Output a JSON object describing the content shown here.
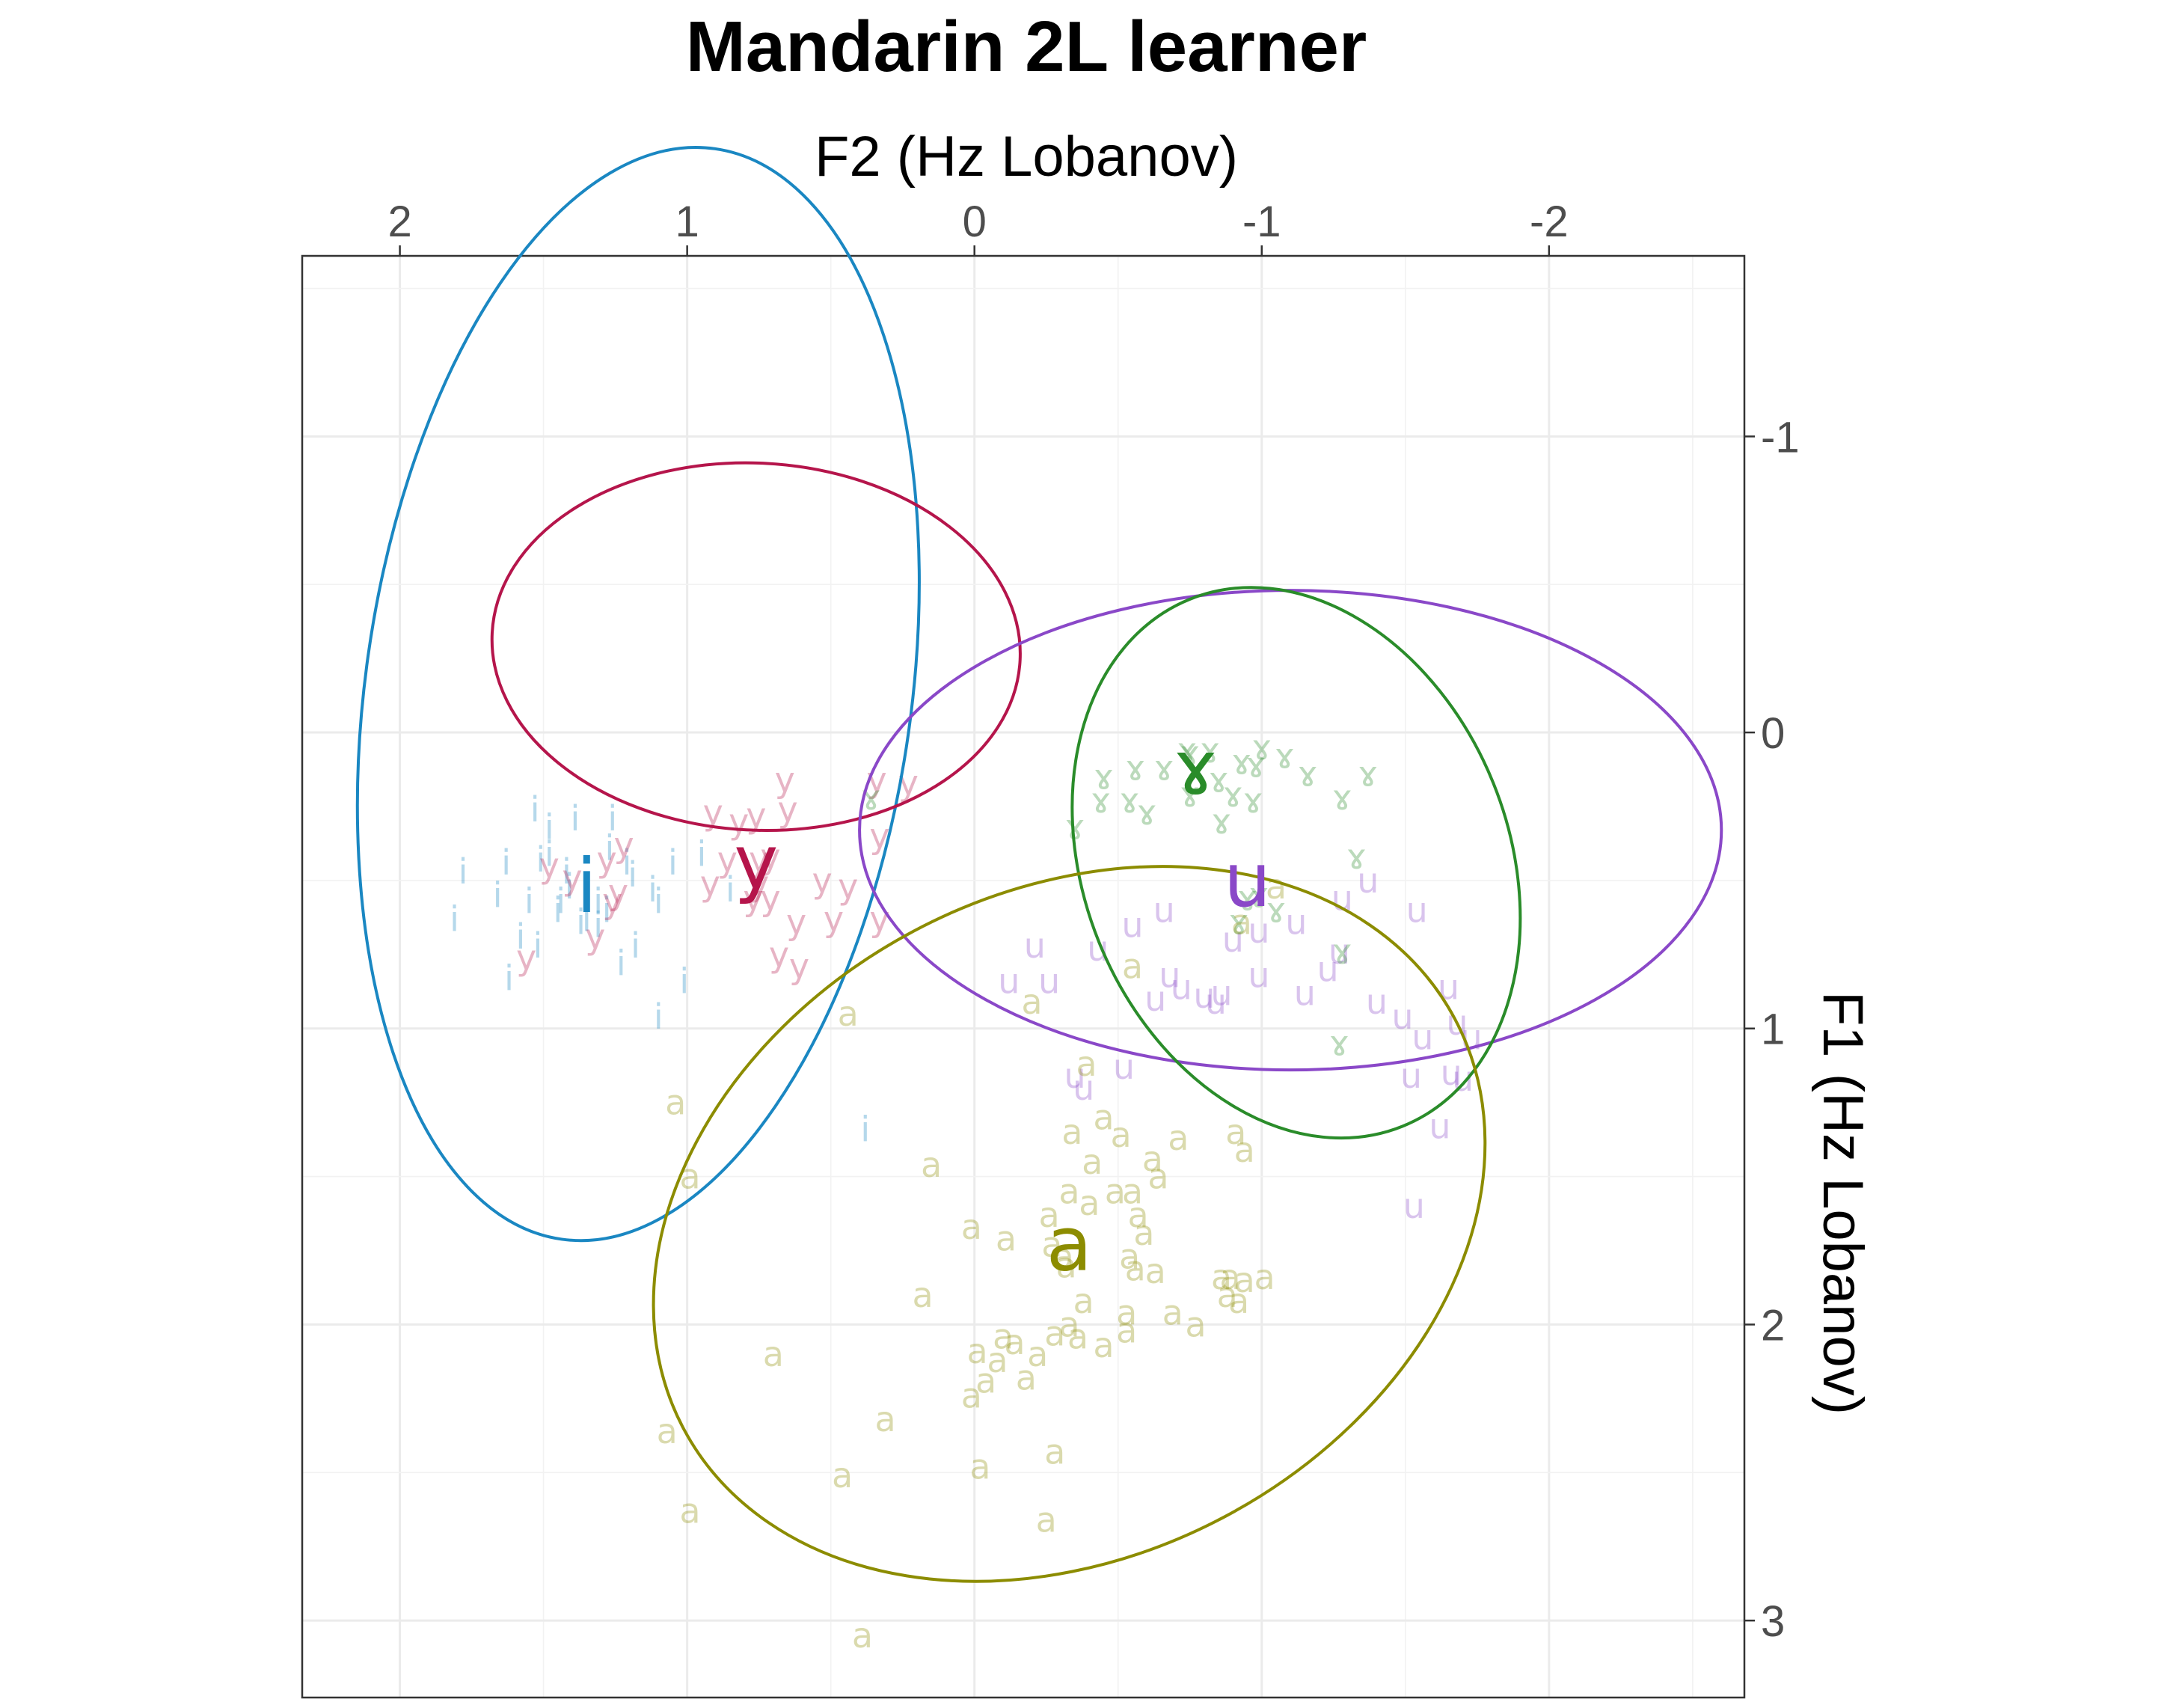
{
  "chart_data": {
    "type": "scatter",
    "title": "Mandarin 2L learner",
    "xlabel": "F2 (Hz Lobanov)",
    "ylabel": "F1 (Hz Lobanov)",
    "x_axis_position": "top",
    "y_axis_position": "right",
    "x_reversed": true,
    "y_reversed": true,
    "xlim": [
      2.34,
      -2.68
    ],
    "ylim": [
      -1.61,
      3.26
    ],
    "x_ticks": [
      2,
      1,
      0,
      -1,
      -2
    ],
    "x_tick_labels": [
      "2",
      "1",
      "0",
      "-1",
      "-2"
    ],
    "y_ticks": [
      -1,
      0,
      1,
      2,
      3
    ],
    "y_tick_labels": [
      "-1",
      "0",
      "1",
      "2",
      "3"
    ],
    "grid": true,
    "legend": "none",
    "series": [
      {
        "name": "i",
        "color": "#1a87c2",
        "centroid": [
          1.35,
          0.52
        ],
        "ellipse": {
          "cx": 1.17,
          "cy": -0.13,
          "rx": 0.95,
          "ry": 1.86,
          "angle_deg": 8
        },
        "points": [
          [
            1.52,
            0.72
          ],
          [
            1.42,
            0.47
          ],
          [
            1.28,
            0.6
          ],
          [
            1.1,
            0.57
          ],
          [
            1.58,
            0.69
          ],
          [
            1.31,
            0.57
          ],
          [
            1.45,
            0.6
          ],
          [
            1.21,
            0.44
          ],
          [
            1.63,
            0.44
          ],
          [
            1.78,
            0.47
          ],
          [
            1.55,
            0.57
          ],
          [
            1.37,
            0.64
          ],
          [
            1.18,
            0.72
          ],
          [
            1.05,
            0.44
          ],
          [
            1.01,
            0.84
          ],
          [
            1.1,
            0.96
          ],
          [
            1.48,
            0.32
          ],
          [
            1.26,
            0.29
          ],
          [
            1.41,
            0.52
          ],
          [
            1.62,
            0.83
          ],
          [
            1.19,
            0.48
          ],
          [
            1.39,
            0.29
          ],
          [
            1.31,
            0.65
          ],
          [
            1.51,
            0.43
          ],
          [
            1.12,
            0.53
          ],
          [
            1.27,
            0.39
          ],
          [
            1.44,
            0.57
          ],
          [
            1.53,
            0.26
          ],
          [
            1.66,
            0.55
          ],
          [
            0.95,
            0.41
          ],
          [
            1.81,
            0.63
          ],
          [
            1.48,
            0.41
          ],
          [
            1.23,
            0.78
          ],
          [
            1.35,
            0.63
          ],
          [
            0.85,
            0.53
          ],
          [
            0.38,
            1.34
          ]
        ]
      },
      {
        "name": "y",
        "color": "#b5154b",
        "centroid": [
          0.76,
          0.44
        ],
        "ellipse": {
          "cx": 0.76,
          "cy": -0.29,
          "rx": 0.92,
          "ry": 0.62,
          "angle_deg": 3
        },
        "points": [
          [
            1.26,
            0.57
          ],
          [
            1.32,
            0.69
          ],
          [
            1.24,
            0.54
          ],
          [
            1.22,
            0.38
          ],
          [
            1.4,
            0.49
          ],
          [
            0.91,
            0.27
          ],
          [
            0.82,
            0.3
          ],
          [
            0.65,
            0.26
          ],
          [
            0.71,
            0.42
          ],
          [
            0.53,
            0.5
          ],
          [
            0.44,
            0.52
          ],
          [
            0.33,
            0.35
          ],
          [
            0.34,
            0.16
          ],
          [
            0.33,
            0.63
          ],
          [
            0.75,
            0.51
          ],
          [
            0.62,
            0.64
          ],
          [
            0.68,
            0.75
          ],
          [
            0.77,
            0.56
          ],
          [
            1.28,
            0.43
          ],
          [
            1.48,
            0.45
          ],
          [
            1.56,
            0.76
          ],
          [
            0.92,
            0.51
          ],
          [
            0.86,
            0.43
          ],
          [
            0.66,
            0.16
          ],
          [
            0.76,
            0.28
          ],
          [
            0.71,
            0.56
          ],
          [
            0.75,
            0.43
          ],
          [
            0.49,
            0.63
          ],
          [
            0.61,
            0.79
          ],
          [
            0.23,
            0.17
          ]
        ]
      },
      {
        "name": "u",
        "color": "#8a48c8",
        "centroid": [
          -0.95,
          0.5
        ],
        "ellipse": {
          "cx": -1.1,
          "cy": 0.33,
          "rx": 1.5,
          "ry": 0.81,
          "angle_deg": 0
        },
        "points": [
          [
            -0.55,
            0.65
          ],
          [
            -0.66,
            0.6
          ],
          [
            -0.84,
            0.91
          ],
          [
            -0.9,
            0.7
          ],
          [
            -0.99,
            0.67
          ],
          [
            -1.15,
            0.88
          ],
          [
            -1.23,
            0.8
          ],
          [
            -1.27,
            0.74
          ],
          [
            -1.4,
            0.91
          ],
          [
            -1.49,
            0.96
          ],
          [
            -1.56,
            1.03
          ],
          [
            -1.66,
            1.15
          ],
          [
            -1.68,
            0.98
          ],
          [
            -0.38,
            1.2
          ],
          [
            -0.43,
            0.73
          ],
          [
            -0.21,
            0.72
          ],
          [
            -0.26,
            0.84
          ],
          [
            -0.12,
            0.84
          ],
          [
            -0.35,
            1.16
          ],
          [
            -1.12,
            0.64
          ],
          [
            -1.28,
            0.56
          ],
          [
            -1.37,
            0.5
          ],
          [
            -1.54,
            0.6
          ],
          [
            -1.65,
            0.86
          ],
          [
            -1.7,
            1.17
          ],
          [
            -0.8,
            0.89
          ],
          [
            -0.68,
            0.82
          ],
          [
            -0.63,
            0.9
          ],
          [
            -0.99,
            0.82
          ],
          [
            -1.52,
            1.16
          ],
          [
            -1.53,
            1.6
          ],
          [
            -1.62,
            1.33
          ],
          [
            -1.73,
            1.03
          ],
          [
            -0.52,
            1.13
          ],
          [
            -0.72,
            0.86
          ],
          [
            -0.86,
            0.88
          ]
        ]
      },
      {
        "name": "ɤ",
        "color": "#2a8c2a",
        "centroid": [
          -0.77,
          0.12
        ],
        "ellipse": {
          "cx": -1.12,
          "cy": 0.44,
          "rx": 0.74,
          "ry": 0.96,
          "angle_deg": -22
        },
        "points": [
          [
            -0.35,
            0.32
          ],
          [
            -0.44,
            0.23
          ],
          [
            -0.54,
            0.23
          ],
          [
            -0.45,
            0.15
          ],
          [
            -0.66,
            0.12
          ],
          [
            -0.74,
            0.06
          ],
          [
            -0.86,
            0.3
          ],
          [
            -0.93,
            0.1
          ],
          [
            -1.0,
            0.05
          ],
          [
            -1.08,
            0.08
          ],
          [
            -1.16,
            0.14
          ],
          [
            -1.28,
            0.22
          ],
          [
            -1.37,
            0.14
          ],
          [
            -1.33,
            0.42
          ],
          [
            -1.28,
            0.74
          ],
          [
            -1.27,
            1.05
          ],
          [
            -0.99,
            0.55
          ],
          [
            -0.95,
            0.56
          ],
          [
            -0.6,
            0.27
          ],
          [
            -0.75,
            0.21
          ],
          [
            -0.9,
            0.21
          ],
          [
            -0.98,
            0.11
          ],
          [
            -0.82,
            0.06
          ],
          [
            -0.97,
            0.23
          ],
          [
            -0.56,
            0.12
          ],
          [
            -0.92,
            0.64
          ],
          [
            -1.05,
            0.6
          ],
          [
            -0.85,
            0.16
          ],
          [
            -0.75,
            0.07
          ],
          [
            0.36,
            0.22
          ]
        ]
      },
      {
        "name": "a",
        "color": "#8c8c00",
        "centroid": [
          -0.33,
          1.73
        ],
        "ellipse": {
          "cx": -0.33,
          "cy": 1.66,
          "rx": 1.52,
          "ry": 1.12,
          "angle_deg": -28
        },
        "points": [
          [
            -1.05,
            0.52
          ],
          [
            -0.93,
            0.64
          ],
          [
            -0.55,
            0.79
          ],
          [
            -0.2,
            0.91
          ],
          [
            -0.39,
            1.12
          ],
          [
            -0.45,
            1.3
          ],
          [
            -0.51,
            1.36
          ],
          [
            -0.71,
            1.37
          ],
          [
            -0.94,
            1.41
          ],
          [
            -0.91,
            1.35
          ],
          [
            -0.62,
            1.44
          ],
          [
            -0.64,
            1.5
          ],
          [
            -0.55,
            1.55
          ],
          [
            -0.26,
            1.63
          ],
          [
            -0.33,
            1.55
          ],
          [
            -0.4,
            1.59
          ],
          [
            -0.57,
            1.63
          ],
          [
            -0.59,
            1.69
          ],
          [
            -0.27,
            1.73
          ],
          [
            -0.32,
            1.8
          ],
          [
            -0.54,
            1.77
          ],
          [
            -0.56,
            1.81
          ],
          [
            -0.63,
            1.82
          ],
          [
            -0.89,
            1.84
          ],
          [
            -0.94,
            1.85
          ],
          [
            -1.01,
            1.84
          ],
          [
            -0.86,
            1.84
          ],
          [
            -0.92,
            1.92
          ],
          [
            -0.38,
            1.92
          ],
          [
            -0.53,
            1.96
          ],
          [
            -0.53,
            2.02
          ],
          [
            -0.33,
            2.0
          ],
          [
            -0.36,
            2.04
          ],
          [
            -0.45,
            2.07
          ],
          [
            -0.28,
            2.03
          ],
          [
            -0.22,
            2.1
          ],
          [
            -0.14,
            2.06
          ],
          [
            -0.1,
            2.04
          ],
          [
            -0.01,
            2.09
          ],
          [
            -0.08,
            2.12
          ],
          [
            -0.04,
            2.19
          ],
          [
            -0.18,
            2.18
          ],
          [
            0.01,
            2.24
          ],
          [
            0.18,
            1.9
          ],
          [
            0.7,
            2.1
          ],
          [
            0.31,
            2.32
          ],
          [
            0.46,
            2.51
          ],
          [
            0.99,
            2.63
          ],
          [
            1.07,
            2.36
          ],
          [
            0.99,
            1.5
          ],
          [
            1.04,
            1.25
          ],
          [
            0.44,
            0.95
          ],
          [
            0.15,
            1.46
          ],
          [
            -0.02,
            2.48
          ],
          [
            -0.28,
            2.43
          ],
          [
            -0.25,
            2.66
          ],
          [
            0.39,
            3.05
          ],
          [
            -0.77,
            2.0
          ],
          [
            -0.69,
            1.96
          ],
          [
            -0.88,
            1.9
          ],
          [
            -0.49,
            1.55
          ],
          [
            -0.41,
            1.45
          ],
          [
            -0.34,
            1.35
          ],
          [
            -0.11,
            1.71
          ],
          [
            -0.31,
            1.77
          ],
          [
            0.01,
            1.67
          ]
        ]
      }
    ]
  }
}
